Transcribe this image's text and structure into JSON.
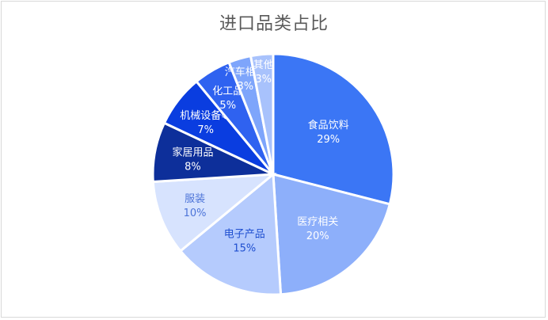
{
  "chart_data": {
    "type": "pie",
    "title": "进口品类占比",
    "categories": [
      "食品饮料",
      "医疗相关",
      "电子产品",
      "服装",
      "家居用品",
      "机械设备等",
      "化工品",
      "汽车相关",
      "其他"
    ],
    "values": [
      29,
      20,
      15,
      10,
      8,
      7,
      5,
      3,
      3
    ],
    "labels": [
      "29%",
      "20%",
      "15%",
      "10%",
      "8%",
      "7%",
      "5%",
      "3%",
      "3%"
    ],
    "colors": [
      "#3b76f5",
      "#8daffa",
      "#b5cbfd",
      "#d7e3fe",
      "#0d2f9a",
      "#0a3de0",
      "#2f62f0",
      "#7ea5fb",
      "#a8c2fc"
    ],
    "label_colors": [
      "#ffffff",
      "#ffffff",
      "#1f4fd0",
      "#4d74d8",
      "#ffffff",
      "#ffffff",
      "#ffffff",
      "#ffffff",
      "#ffffff"
    ],
    "legend": "none"
  }
}
